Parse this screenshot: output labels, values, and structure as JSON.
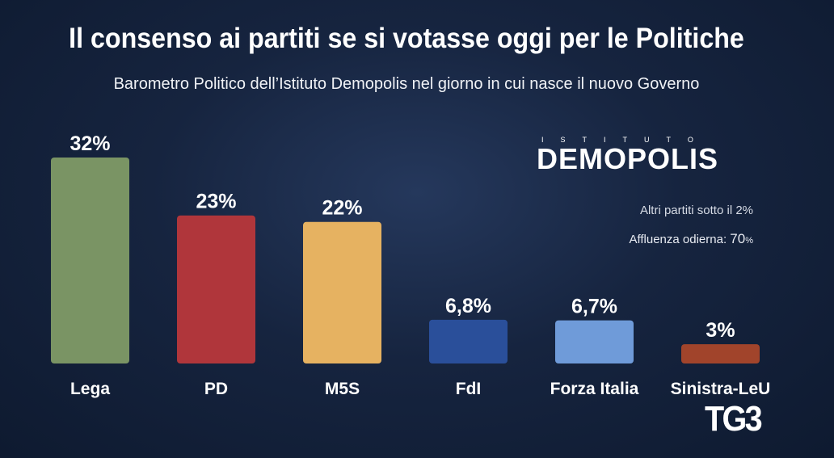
{
  "chart_data": {
    "type": "bar",
    "title": "Il consenso ai partiti se si votasse oggi per le Politiche",
    "subtitle": "Barometro Politico dell’Istituto Demopolis nel giorno in cui nasce il nuovo Governo",
    "categories": [
      "Lega",
      "PD",
      "M5S",
      "FdI",
      "Forza Italia",
      "Sinistra-LeU"
    ],
    "values": [
      32,
      23,
      22,
      6.8,
      6.7,
      3
    ],
    "value_labels": [
      "32%",
      "23%",
      "22%",
      "6,8%",
      "6,7%",
      "3%"
    ],
    "colors": [
      "#7a9464",
      "#b0363b",
      "#e6b261",
      "#2a4f9a",
      "#6f9bd9",
      "#a1442b"
    ],
    "xlabel": "",
    "ylabel": "",
    "ylim": [
      0,
      32
    ],
    "grid": false
  },
  "logo": {
    "top_text": "ISTITUTO",
    "main_text": "DEMOPOLIS"
  },
  "notes": {
    "altri": "Altri partiti sotto il 2%",
    "affluenza_label": "Affluenza odierna:",
    "affluenza_value": "70",
    "affluenza_pct": "%"
  },
  "broadcaster": "TG3"
}
